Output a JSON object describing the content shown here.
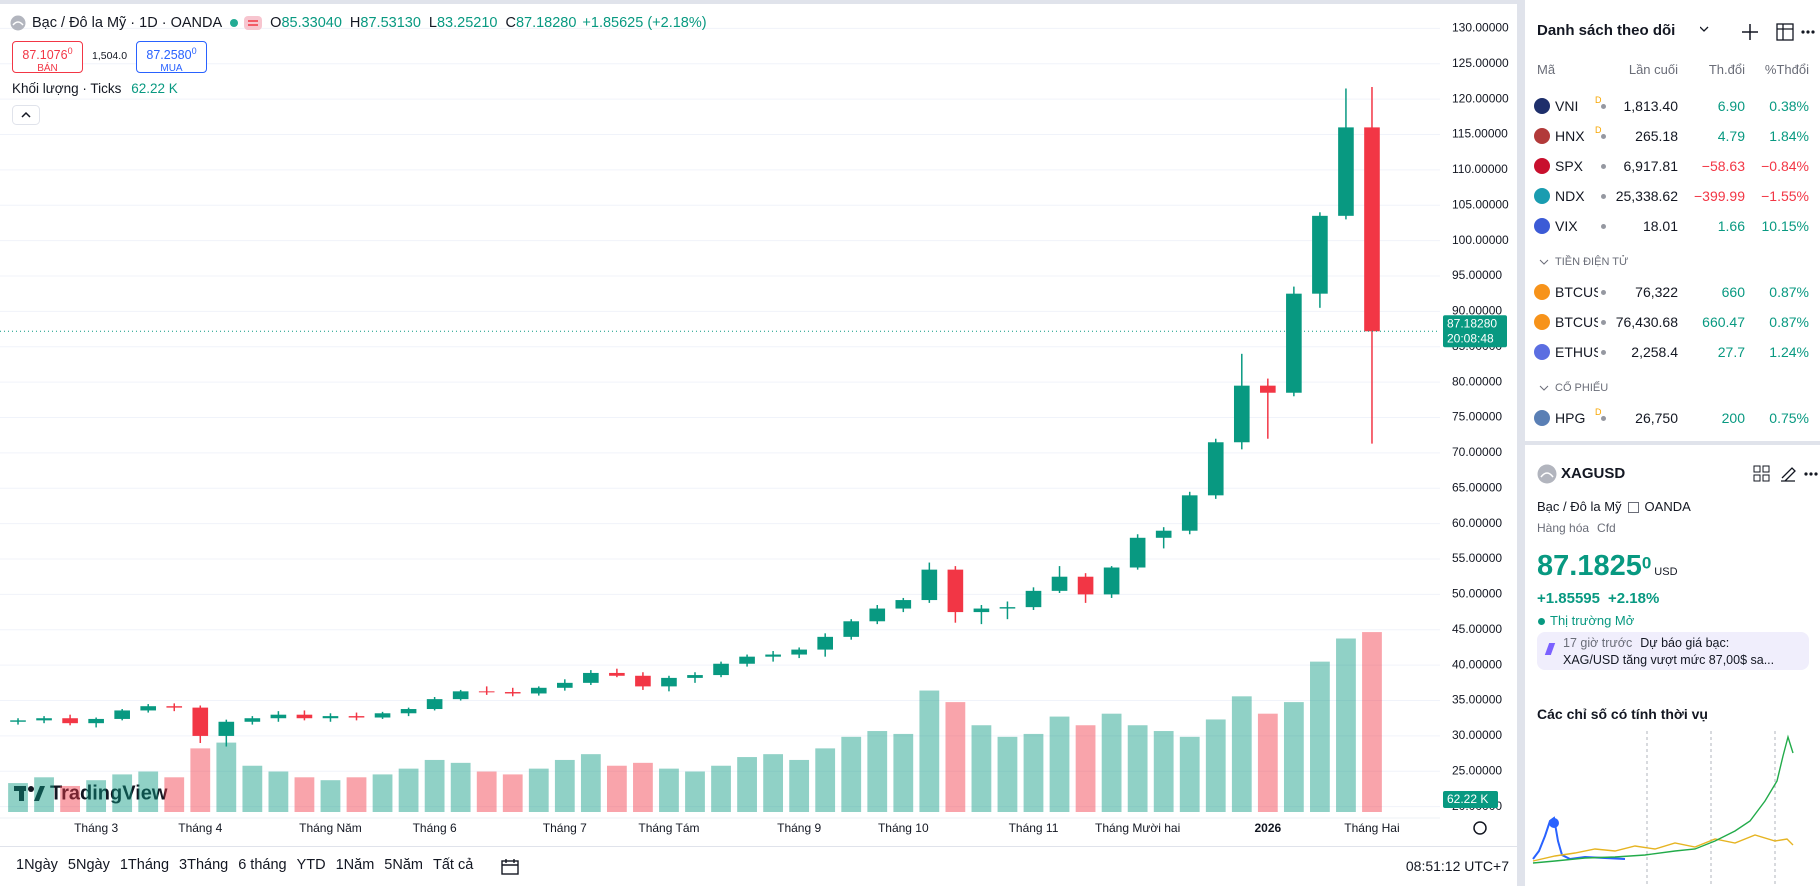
{
  "header": {
    "title": "Bạc / Đô la Mỹ · 1D · OANDA",
    "ohlc": [
      {
        "label": "O",
        "value": "85.33040"
      },
      {
        "label": "H",
        "value": "87.53130"
      },
      {
        "label": "L",
        "value": "83.25210"
      },
      {
        "label": "C",
        "value": "87.18280"
      }
    ],
    "change": "+1.85625 (+2.18%)",
    "bid": {
      "price": "87.1076",
      "sup": "0",
      "label": "BÁN"
    },
    "spread": "1,504.0",
    "ask": {
      "price": "87.2580",
      "sup": "0",
      "label": "MUA"
    },
    "volume_legend": {
      "label": "Khối lượng · Ticks",
      "value": "62.22 K"
    }
  },
  "chart_data": {
    "type": "candlestick",
    "categories": [
      null,
      null,
      null,
      "Tháng 3",
      null,
      null,
      null,
      "Tháng 4",
      null,
      null,
      null,
      null,
      "Tháng Năm",
      null,
      null,
      null,
      "Tháng 6",
      null,
      null,
      null,
      null,
      "Tháng 7",
      null,
      null,
      null,
      "Tháng Tám",
      null,
      null,
      null,
      null,
      "Tháng 9",
      null,
      null,
      null,
      "Tháng 10",
      null,
      null,
      null,
      null,
      "Tháng 11",
      null,
      null,
      null,
      "Tháng Mười hai",
      null,
      null,
      null,
      null,
      "2026",
      null,
      null,
      null,
      "Tháng Hai"
    ],
    "open": [
      32.0,
      32.2,
      32.5,
      31.8,
      32.4,
      33.6,
      34.2,
      34.0,
      30.0,
      32.0,
      32.5,
      33.0,
      32.5,
      32.8,
      32.6,
      33.2,
      33.8,
      35.2,
      36.3,
      36.2,
      36.0,
      36.8,
      37.5,
      38.9,
      38.5,
      37.0,
      38.2,
      38.6,
      40.2,
      41.2,
      41.5,
      42.2,
      44.0,
      46.2,
      48.0,
      49.2,
      53.5,
      47.5,
      48.0,
      48.2,
      50.5,
      52.5,
      50.0,
      53.8,
      58.0,
      59.0,
      64.0,
      71.5,
      79.5,
      78.5,
      92.5,
      103.5,
      116.0
    ],
    "high": [
      32.5,
      32.8,
      33.0,
      32.6,
      33.8,
      34.5,
      34.6,
      34.3,
      32.3,
      32.8,
      33.5,
      33.6,
      33.2,
      33.3,
      33.4,
      34.0,
      35.5,
      36.5,
      37.0,
      36.8,
      37.0,
      38.0,
      39.3,
      39.5,
      39.0,
      38.5,
      39.0,
      40.5,
      41.5,
      42.0,
      42.5,
      44.5,
      46.5,
      48.5,
      49.5,
      54.5,
      54.0,
      48.5,
      49.0,
      51.0,
      54.0,
      53.0,
      54.0,
      58.5,
      59.5,
      64.5,
      72.0,
      84.0,
      80.5,
      93.5,
      104.0,
      121.5,
      121.7
    ],
    "low": [
      31.6,
      31.8,
      31.5,
      31.2,
      32.2,
      33.3,
      33.5,
      29.0,
      28.5,
      31.6,
      32.0,
      32.2,
      32.0,
      32.2,
      32.4,
      32.8,
      33.6,
      35.0,
      35.8,
      35.6,
      35.7,
      36.4,
      37.2,
      38.3,
      36.5,
      36.3,
      37.5,
      38.3,
      39.8,
      40.5,
      41.0,
      41.2,
      43.6,
      45.8,
      47.5,
      48.8,
      46.0,
      45.8,
      46.5,
      47.8,
      50.2,
      48.8,
      49.5,
      53.5,
      56.5,
      58.5,
      63.5,
      70.5,
      72.0,
      78.0,
      90.5,
      103.0,
      71.3
    ],
    "close": [
      32.2,
      32.5,
      31.8,
      32.4,
      33.6,
      34.2,
      34.0,
      30.0,
      32.0,
      32.5,
      33.0,
      32.5,
      32.8,
      32.6,
      33.2,
      33.8,
      35.2,
      36.3,
      36.2,
      36.0,
      36.8,
      37.5,
      38.9,
      38.5,
      37.0,
      38.2,
      38.6,
      40.2,
      41.2,
      41.5,
      42.2,
      44.0,
      46.2,
      48.0,
      49.2,
      53.5,
      47.5,
      48.0,
      48.2,
      50.5,
      52.5,
      50.0,
      53.8,
      58.0,
      59.0,
      64.0,
      71.5,
      79.5,
      78.5,
      92.5,
      103.5,
      116.0,
      87.1828
    ],
    "volume": [
      10,
      12,
      9,
      11,
      13,
      14,
      12,
      22,
      24,
      16,
      14,
      12,
      11,
      12,
      13,
      15,
      18,
      17,
      14,
      13,
      15,
      18,
      20,
      16,
      17,
      15,
      14,
      16,
      19,
      20,
      18,
      22,
      26,
      28,
      27,
      42,
      38,
      30,
      26,
      27,
      33,
      30,
      34,
      30,
      28,
      26,
      32,
      40,
      34,
      38,
      52,
      60,
      62.22
    ],
    "volume_lim": [
      0,
      277
    ],
    "ylim": [
      18.4,
      131.6
    ],
    "yticks": [
      {
        "value": 20,
        "label": "20.00000"
      },
      {
        "value": 25,
        "label": "25.00000"
      },
      {
        "value": 30,
        "label": "30.00000"
      },
      {
        "value": 35,
        "label": "35.00000"
      },
      {
        "value": 40,
        "label": "40.00000"
      },
      {
        "value": 45,
        "label": "45.00000"
      },
      {
        "value": 50,
        "label": "50.00000"
      },
      {
        "value": 55,
        "label": "55.00000"
      },
      {
        "value": 60,
        "label": "60.00000"
      },
      {
        "value": 65,
        "label": "65.00000"
      },
      {
        "value": 70,
        "label": "70.00000"
      },
      {
        "value": 75,
        "label": "75.00000"
      },
      {
        "value": 80,
        "label": "80.00000"
      },
      {
        "value": 85,
        "label": "85.00000"
      },
      {
        "value": 90,
        "label": "90.00000"
      },
      {
        "value": 95,
        "label": "95.00000"
      },
      {
        "value": 100,
        "label": "100.00000"
      },
      {
        "value": 105,
        "label": "105.00000"
      },
      {
        "value": 110,
        "label": "110.00000"
      },
      {
        "value": 115,
        "label": "115.00000"
      },
      {
        "value": 120,
        "label": "120.00000"
      },
      {
        "value": 125,
        "label": "125.00000"
      },
      {
        "value": 130,
        "label": "130.00000"
      }
    ],
    "last_price": {
      "value": 87.1828,
      "label": "87.18280"
    },
    "last_time": "20:08:48",
    "last_volume": {
      "value": 62.22,
      "label": "62.22 K"
    },
    "up_color": "#089981",
    "down_color": "#f23645",
    "grid": true
  },
  "watermark": "TradingView",
  "toolbar": {
    "ranges": [
      "1Ngày",
      "5Ngày",
      "1Tháng",
      "3Tháng",
      "6 tháng",
      "YTD",
      "1Năm",
      "5Năm",
      "Tất cả"
    ],
    "time": "08:51:12 UTC+7"
  },
  "watchlist": {
    "title": "Danh sách theo dõi",
    "columns": [
      "Mã",
      "Lần cuối",
      "Th.đổi",
      "%Thđổi"
    ],
    "items": [
      {
        "symbol": "VNI",
        "flag": "D",
        "last": "1,813.40",
        "change": "6.90",
        "change_pct": "0.38%",
        "icon_color": "#1e2f6b"
      },
      {
        "symbol": "HNX",
        "flag": "D",
        "last": "265.18",
        "change": "4.79",
        "change_pct": "1.84%",
        "icon_color": "#b23a3a"
      },
      {
        "symbol": "SPX",
        "last": "6,917.81",
        "change": "−58.63",
        "change_pct": "−0.84%",
        "icon_color": "#c8102e"
      },
      {
        "symbol": "NDX",
        "last": "25,338.62",
        "change": "−399.99",
        "change_pct": "−1.55%",
        "icon_color": "#1a9cb0"
      },
      {
        "symbol": "VIX",
        "last": "18.01",
        "change": "1.66",
        "change_pct": "10.15%",
        "icon_color": "#3c5bd6"
      },
      {
        "section": "TIỀN ĐIỆN TỬ"
      },
      {
        "symbol": "BTCUSD",
        "last": "76,322",
        "change": "660",
        "change_pct": "0.87%",
        "icon_color": "#f7931a"
      },
      {
        "symbol": "BTCUSD",
        "last": "76,430.68",
        "change": "660.47",
        "change_pct": "0.87%",
        "icon_color": "#f7931a"
      },
      {
        "symbol": "ETHUSD",
        "last": "2,258.4",
        "change": "27.7",
        "change_pct": "1.24%",
        "icon_color": "#5b6ee1"
      },
      {
        "section": "CỔ PHIẾU"
      },
      {
        "symbol": "HPG",
        "flag": "D",
        "last": "26,750",
        "change": "200",
        "change_pct": "0.75%",
        "icon_color": "#5a7fb5"
      }
    ]
  },
  "details": {
    "symbol": "XAGUSD",
    "name": "Bạc / Đô la Mỹ",
    "exchange": "OANDA",
    "category": "Hàng hóa",
    "contract": "Cfd",
    "price": "87.1825",
    "price_sup": "0",
    "currency": "USD",
    "change": "+1.85595",
    "change_pct": "+2.18%",
    "status": "Thị trường Mở",
    "news": {
      "time": "17 giờ trước",
      "headline": "Dự báo giá bạc:",
      "text": "XAG/USD tăng vượt mức 87,00$ sa..."
    },
    "seasonal_title": "Các chỉ số có tính thời vụ"
  }
}
